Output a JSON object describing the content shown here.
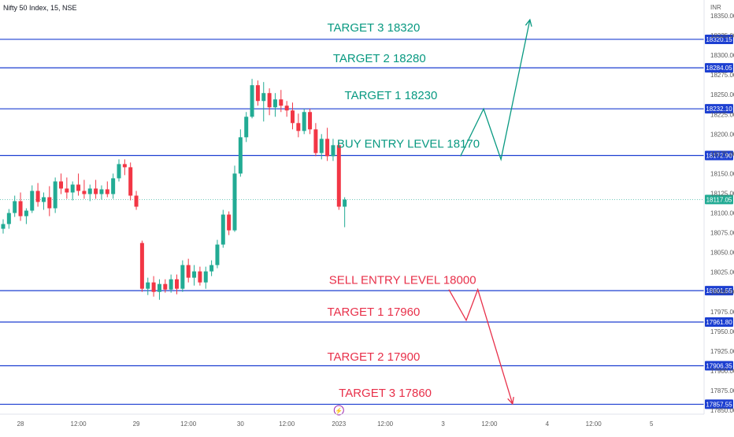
{
  "header": {
    "symbol": "Nifty 50 Index, 15, NSE",
    "currency": "INR"
  },
  "colors": {
    "up": "#22ab94",
    "down": "#f23645",
    "level_line": "#1c3fd1",
    "buy": "#089981",
    "sell": "#e8304a",
    "last_price": "#22ab94"
  },
  "chart_data": {
    "type": "candlestick",
    "title": "",
    "ylim": [
      17845,
      18370
    ],
    "y_ticks": [
      18350,
      18325,
      18300,
      18275,
      18250,
      18225,
      18200,
      18175,
      18150,
      18125,
      18100,
      18075,
      18050,
      18025,
      18000,
      17975,
      17950,
      17925,
      17900,
      17875,
      17850
    ],
    "x_ticks": [
      {
        "label": "28",
        "slot": 3
      },
      {
        "label": "12:00",
        "slot": 13
      },
      {
        "label": "29",
        "slot": 23
      },
      {
        "label": "12:00",
        "slot": 32
      },
      {
        "label": "30",
        "slot": 41
      },
      {
        "label": "12:00",
        "slot": 49
      },
      {
        "label": "2023",
        "slot": 58
      },
      {
        "label": "12:00",
        "slot": 66
      },
      {
        "label": "3",
        "slot": 76
      },
      {
        "label": "12:00",
        "slot": 84
      },
      {
        "label": "4",
        "slot": 94
      },
      {
        "label": "12:00",
        "slot": 102
      },
      {
        "label": "5",
        "slot": 112
      }
    ],
    "candles": [
      {
        "o": 18080,
        "h": 18092,
        "l": 18074,
        "c": 18086
      },
      {
        "o": 18086,
        "h": 18105,
        "l": 18080,
        "c": 18100
      },
      {
        "o": 18100,
        "h": 18122,
        "l": 18095,
        "c": 18115
      },
      {
        "o": 18115,
        "h": 18126,
        "l": 18090,
        "c": 18096
      },
      {
        "o": 18096,
        "h": 18106,
        "l": 18086,
        "c": 18103
      },
      {
        "o": 18103,
        "h": 18135,
        "l": 18100,
        "c": 18128
      },
      {
        "o": 18128,
        "h": 18138,
        "l": 18108,
        "c": 18114
      },
      {
        "o": 18114,
        "h": 18126,
        "l": 18104,
        "c": 18120
      },
      {
        "o": 18120,
        "h": 18134,
        "l": 18096,
        "c": 18106
      },
      {
        "o": 18106,
        "h": 18145,
        "l": 18100,
        "c": 18140
      },
      {
        "o": 18140,
        "h": 18150,
        "l": 18124,
        "c": 18131
      },
      {
        "o": 18131,
        "h": 18145,
        "l": 18118,
        "c": 18126
      },
      {
        "o": 18126,
        "h": 18140,
        "l": 18116,
        "c": 18136
      },
      {
        "o": 18136,
        "h": 18150,
        "l": 18122,
        "c": 18128
      },
      {
        "o": 18128,
        "h": 18142,
        "l": 18118,
        "c": 18124
      },
      {
        "o": 18124,
        "h": 18136,
        "l": 18115,
        "c": 18131
      },
      {
        "o": 18131,
        "h": 18142,
        "l": 18118,
        "c": 18124
      },
      {
        "o": 18124,
        "h": 18135,
        "l": 18117,
        "c": 18130
      },
      {
        "o": 18130,
        "h": 18140,
        "l": 18120,
        "c": 18124
      },
      {
        "o": 18124,
        "h": 18150,
        "l": 18118,
        "c": 18144
      },
      {
        "o": 18144,
        "h": 18168,
        "l": 18140,
        "c": 18162
      },
      {
        "o": 18162,
        "h": 18168,
        "l": 18148,
        "c": 18158
      },
      {
        "o": 18158,
        "h": 18164,
        "l": 18116,
        "c": 18122
      },
      {
        "o": 18122,
        "h": 18128,
        "l": 18104,
        "c": 18108
      },
      {
        "o": 18062,
        "h": 18065,
        "l": 18000,
        "c": 18004
      },
      {
        "o": 18004,
        "h": 18018,
        "l": 17996,
        "c": 18012
      },
      {
        "o": 18012,
        "h": 18020,
        "l": 17994,
        "c": 18000
      },
      {
        "o": 18000,
        "h": 18016,
        "l": 17990,
        "c": 18010
      },
      {
        "o": 18010,
        "h": 18016,
        "l": 17999,
        "c": 18003
      },
      {
        "o": 18003,
        "h": 18022,
        "l": 17999,
        "c": 18016
      },
      {
        "o": 18016,
        "h": 18022,
        "l": 17997,
        "c": 18004
      },
      {
        "o": 18004,
        "h": 18040,
        "l": 18000,
        "c": 18034
      },
      {
        "o": 18034,
        "h": 18042,
        "l": 18012,
        "c": 18018
      },
      {
        "o": 18018,
        "h": 18034,
        "l": 18008,
        "c": 18026
      },
      {
        "o": 18026,
        "h": 18032,
        "l": 18008,
        "c": 18012
      },
      {
        "o": 18012,
        "h": 18032,
        "l": 18004,
        "c": 18026
      },
      {
        "o": 18026,
        "h": 18040,
        "l": 18020,
        "c": 18034
      },
      {
        "o": 18034,
        "h": 18066,
        "l": 18030,
        "c": 18060
      },
      {
        "o": 18060,
        "h": 18104,
        "l": 18056,
        "c": 18098
      },
      {
        "o": 18098,
        "h": 18102,
        "l": 18072,
        "c": 18078
      },
      {
        "o": 18078,
        "h": 18160,
        "l": 18076,
        "c": 18150
      },
      {
        "o": 18150,
        "h": 18206,
        "l": 18146,
        "c": 18196
      },
      {
        "o": 18196,
        "h": 18228,
        "l": 18190,
        "c": 18222
      },
      {
        "o": 18222,
        "h": 18270,
        "l": 18220,
        "c": 18262
      },
      {
        "o": 18262,
        "h": 18268,
        "l": 18236,
        "c": 18242
      },
      {
        "o": 18242,
        "h": 18266,
        "l": 18216,
        "c": 18252
      },
      {
        "o": 18252,
        "h": 18258,
        "l": 18224,
        "c": 18234
      },
      {
        "o": 18234,
        "h": 18252,
        "l": 18222,
        "c": 18244
      },
      {
        "o": 18244,
        "h": 18256,
        "l": 18228,
        "c": 18236
      },
      {
        "o": 18236,
        "h": 18242,
        "l": 18222,
        "c": 18230
      },
      {
        "o": 18230,
        "h": 18240,
        "l": 18206,
        "c": 18214
      },
      {
        "o": 18214,
        "h": 18226,
        "l": 18196,
        "c": 18204
      },
      {
        "o": 18204,
        "h": 18232,
        "l": 18200,
        "c": 18228
      },
      {
        "o": 18228,
        "h": 18232,
        "l": 18200,
        "c": 18206
      },
      {
        "o": 18206,
        "h": 18214,
        "l": 18172,
        "c": 18176
      },
      {
        "o": 18176,
        "h": 18200,
        "l": 18168,
        "c": 18194
      },
      {
        "o": 18194,
        "h": 18208,
        "l": 18166,
        "c": 18172
      },
      {
        "o": 18172,
        "h": 18194,
        "l": 18166,
        "c": 18186
      },
      {
        "o": 18186,
        "h": 18190,
        "l": 18104,
        "c": 18108
      },
      {
        "o": 18108,
        "h": 18120,
        "l": 18082,
        "c": 18117
      }
    ],
    "levels": [
      {
        "value": 18320.15,
        "label": "18320.15"
      },
      {
        "value": 18284.05,
        "label": "18284.05"
      },
      {
        "value": 18232.1,
        "label": "18232.10"
      },
      {
        "value": 18172.9,
        "label": "18172.90"
      },
      {
        "value": 18001.55,
        "label": "18001.55"
      },
      {
        "value": 17961.8,
        "label": "17961.80"
      },
      {
        "value": 17906.35,
        "label": "17906.35"
      },
      {
        "value": 17857.55,
        "label": "17857.55"
      }
    ],
    "last_price": {
      "value": 18117.05,
      "label": "18117.05"
    },
    "annotations": [
      {
        "text": "TARGET 3 18320",
        "slot": 64,
        "value": 18330,
        "side": "buy"
      },
      {
        "text": "TARGET 2 18280",
        "slot": 65,
        "value": 18291,
        "side": "buy"
      },
      {
        "text": "TARGET 1 18230",
        "slot": 67,
        "value": 18244,
        "side": "buy"
      },
      {
        "text": "BUY ENTRY LEVEL 18170",
        "slot": 70,
        "value": 18183,
        "side": "buy"
      },
      {
        "text": "SELL ENTRY LEVEL 18000",
        "slot": 69,
        "value": 18010,
        "side": "sell"
      },
      {
        "text": "TARGET 1 17960",
        "slot": 64,
        "value": 17970,
        "side": "sell"
      },
      {
        "text": "TARGET 2 17900",
        "slot": 64,
        "value": 17913,
        "side": "sell"
      },
      {
        "text": "TARGET 3 17860",
        "slot": 66,
        "value": 17867,
        "side": "sell"
      }
    ],
    "projections": {
      "buy": [
        [
          79,
          18172
        ],
        [
          83,
          18232
        ],
        [
          86,
          18168
        ],
        [
          91,
          18345
        ]
      ],
      "sell": [
        [
          77,
          18003
        ],
        [
          80,
          17964
        ],
        [
          82,
          18003
        ],
        [
          88,
          17858
        ]
      ]
    },
    "event_marker": {
      "slot": 58,
      "glyph": "⚡"
    }
  }
}
